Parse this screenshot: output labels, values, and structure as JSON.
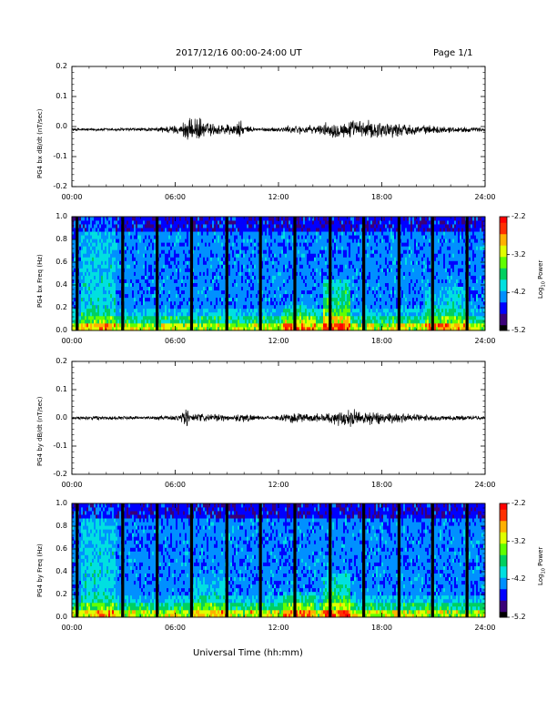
{
  "header": {
    "date_range": "2017/12/16  00:00-24:00 UT",
    "page": "Page 1/1"
  },
  "xlabel": "Universal Time (hh:mm)",
  "colors": {
    "trace": "#000000",
    "colormap": [
      "#000000",
      "#3a0078",
      "#0000ff",
      "#0090ff",
      "#00e0e0",
      "#00d060",
      "#60ff00",
      "#e0ff00",
      "#ffb000",
      "#ff3000",
      "#ff0000"
    ]
  },
  "chart_data": [
    {
      "type": "line",
      "ylabel": "PG4 bx dB/dt (nT/sec)",
      "xlim": [
        0,
        24
      ],
      "ylim": [
        -0.2,
        0.2
      ],
      "x_ticks": [
        "00:00",
        "06:00",
        "12:00",
        "18:00",
        "24:00"
      ],
      "y_ticks": [
        "0.2",
        "0.1",
        "0.0",
        "-0.1",
        "-0.2"
      ],
      "baseline": -0.01,
      "envelope": [
        {
          "t": 0,
          "a": 0.005
        },
        {
          "t": 5.0,
          "a": 0.006
        },
        {
          "t": 5.2,
          "a": 0.012
        },
        {
          "t": 6.4,
          "a": 0.015
        },
        {
          "t": 6.6,
          "a": 0.05
        },
        {
          "t": 6.9,
          "a": 0.03
        },
        {
          "t": 7.2,
          "a": 0.045
        },
        {
          "t": 7.6,
          "a": 0.03
        },
        {
          "t": 8.2,
          "a": 0.02
        },
        {
          "t": 9.5,
          "a": 0.02
        },
        {
          "t": 9.7,
          "a": 0.035
        },
        {
          "t": 10.0,
          "a": 0.012
        },
        {
          "t": 11.0,
          "a": 0.006
        },
        {
          "t": 12.0,
          "a": 0.008
        },
        {
          "t": 13.0,
          "a": 0.015
        },
        {
          "t": 14.0,
          "a": 0.012
        },
        {
          "t": 15.0,
          "a": 0.025
        },
        {
          "t": 16.5,
          "a": 0.03
        },
        {
          "t": 18.0,
          "a": 0.028
        },
        {
          "t": 20.0,
          "a": 0.015
        },
        {
          "t": 22.0,
          "a": 0.01
        },
        {
          "t": 24.0,
          "a": 0.006
        }
      ]
    },
    {
      "type": "heatmap",
      "ylabel": "PG4 bx Freq (Hz)",
      "xlim": [
        0,
        24
      ],
      "ylim": [
        0.0,
        1.0
      ],
      "x_ticks": [
        "00:00",
        "06:00",
        "12:00",
        "18:00",
        "24:00"
      ],
      "y_ticks": [
        "1.0",
        "0.8",
        "0.6",
        "0.4",
        "0.2",
        "0.0"
      ],
      "colorbar": {
        "label": "Log10 Power",
        "range": [
          -5.2,
          -2.2
        ],
        "ticks": [
          "-2.2",
          "-3.2",
          "-4.2",
          "-5.2"
        ]
      },
      "gap_hours": [
        0.3,
        2.95,
        4.95,
        6.95,
        9.0,
        10.95,
        12.95,
        15.0,
        16.95,
        19.0,
        20.95,
        22.95
      ],
      "features": [
        {
          "t0": 0.5,
          "t1": 2.5,
          "f_max": 1.0,
          "level": 0.45
        },
        {
          "t0": 12.3,
          "t1": 14.2,
          "f_max": 0.22,
          "level": 0.55
        },
        {
          "t0": 14.6,
          "t1": 16.2,
          "f_max": 0.45,
          "level": 0.65
        },
        {
          "t0": 20.5,
          "t1": 23.0,
          "f_max": 0.4,
          "level": 0.5
        }
      ]
    },
    {
      "type": "line",
      "ylabel": "PG4 by dB/dt (nT/sec)",
      "xlim": [
        0,
        24
      ],
      "ylim": [
        -0.2,
        0.2
      ],
      "x_ticks": [
        "00:00",
        "06:00",
        "12:00",
        "18:00",
        "24:00"
      ],
      "y_ticks": [
        "0.2",
        "0.1",
        "0.0",
        "-0.1",
        "-0.2"
      ],
      "baseline": 0.0,
      "envelope": [
        {
          "t": 0,
          "a": 0.004
        },
        {
          "t": 1.0,
          "a": 0.007
        },
        {
          "t": 2.5,
          "a": 0.006
        },
        {
          "t": 5.0,
          "a": 0.006
        },
        {
          "t": 6.3,
          "a": 0.01
        },
        {
          "t": 6.6,
          "a": 0.045
        },
        {
          "t": 6.9,
          "a": 0.015
        },
        {
          "t": 9.5,
          "a": 0.01
        },
        {
          "t": 9.7,
          "a": 0.018
        },
        {
          "t": 11.0,
          "a": 0.005
        },
        {
          "t": 12.0,
          "a": 0.007
        },
        {
          "t": 12.8,
          "a": 0.02
        },
        {
          "t": 14.0,
          "a": 0.012
        },
        {
          "t": 15.3,
          "a": 0.025
        },
        {
          "t": 16.5,
          "a": 0.028
        },
        {
          "t": 18.0,
          "a": 0.022
        },
        {
          "t": 20.0,
          "a": 0.012
        },
        {
          "t": 24.0,
          "a": 0.006
        }
      ]
    },
    {
      "type": "heatmap",
      "ylabel": "PG4 by Freq (Hz)",
      "xlim": [
        0,
        24
      ],
      "ylim": [
        0.0,
        1.0
      ],
      "x_ticks": [
        "00:00",
        "06:00",
        "12:00",
        "18:00",
        "24:00"
      ],
      "y_ticks": [
        "1.0",
        "0.8",
        "0.6",
        "0.4",
        "0.2",
        "0.0"
      ],
      "colorbar": {
        "label": "Log10 Power",
        "range": [
          -5.2,
          -2.2
        ],
        "ticks": [
          "-2.2",
          "-3.2",
          "-4.2",
          "-5.2"
        ]
      },
      "gap_hours": [
        0.3,
        2.95,
        4.95,
        6.95,
        9.0,
        10.95,
        12.95,
        15.0,
        16.95,
        19.0,
        20.95,
        22.95
      ],
      "features": [
        {
          "t0": 0.5,
          "t1": 2.5,
          "f_max": 1.0,
          "level": 0.45
        },
        {
          "t0": 7.0,
          "t1": 9.0,
          "f_max": 0.35,
          "level": 0.45
        },
        {
          "t0": 12.3,
          "t1": 14.2,
          "f_max": 0.22,
          "level": 0.55
        },
        {
          "t0": 14.6,
          "t1": 16.2,
          "f_max": 0.4,
          "level": 0.6
        }
      ]
    }
  ]
}
